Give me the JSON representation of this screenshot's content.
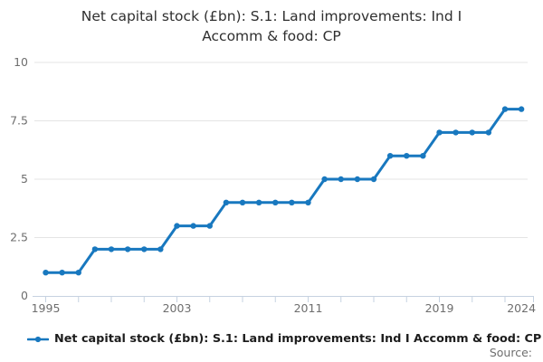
{
  "title": {
    "line1": "Net capital stock (£bn): S.1: Land improvements: Ind I",
    "line2": "Accomm & food: CP"
  },
  "legend": {
    "label": "Net capital stock (£bn): S.1: Land improvements: Ind I Accomm & food: CP",
    "marker": "line-with-dot"
  },
  "source": {
    "label": "Source:"
  },
  "colors": {
    "line": "#1878bf",
    "grid": "#e4e4e4",
    "axis": "#c6d2e0",
    "axis_text": "#6e6e6e",
    "title_text": "#2f2f2f",
    "legend_text": "#1c1c1c",
    "background": "#ffffff"
  },
  "chart_data": {
    "type": "line",
    "title": "Net capital stock (£bn): S.1: Land improvements: Ind I Accomm & food: CP",
    "x": [
      1995,
      1996,
      1997,
      1998,
      1999,
      2000,
      2001,
      2002,
      2003,
      2004,
      2005,
      2006,
      2007,
      2008,
      2009,
      2010,
      2011,
      2012,
      2013,
      2014,
      2015,
      2016,
      2017,
      2018,
      2019,
      2020,
      2021,
      2022,
      2023,
      2024
    ],
    "series": [
      {
        "name": "Net capital stock (£bn): S.1: Land improvements: Ind I Accomm & food: CP",
        "values": [
          1,
          1,
          1,
          2,
          2,
          2,
          2,
          2,
          3,
          3,
          3,
          4,
          4,
          4,
          4,
          4,
          4,
          5,
          5,
          5,
          5,
          6,
          6,
          6,
          7,
          7,
          7,
          7,
          8,
          8
        ]
      }
    ],
    "xlabel": "",
    "ylabel": "",
    "ylim": [
      0,
      10
    ],
    "xlim": [
      1995,
      2024
    ],
    "ytick_values": [
      0,
      2.5,
      5,
      7.5,
      10
    ],
    "ytick_labels": [
      "0",
      "2.5",
      "5",
      "7.5",
      "10"
    ],
    "xtick_minor_years": [
      1995,
      1997,
      1999,
      2001,
      2003,
      2005,
      2007,
      2009,
      2011,
      2013,
      2015,
      2017,
      2019,
      2021,
      2023
    ],
    "xtick_label_years": [
      1995,
      2003,
      2011,
      2019,
      2024
    ],
    "grid": "horizontal-only",
    "legend_position": "bottom-left",
    "marker": "circle"
  }
}
